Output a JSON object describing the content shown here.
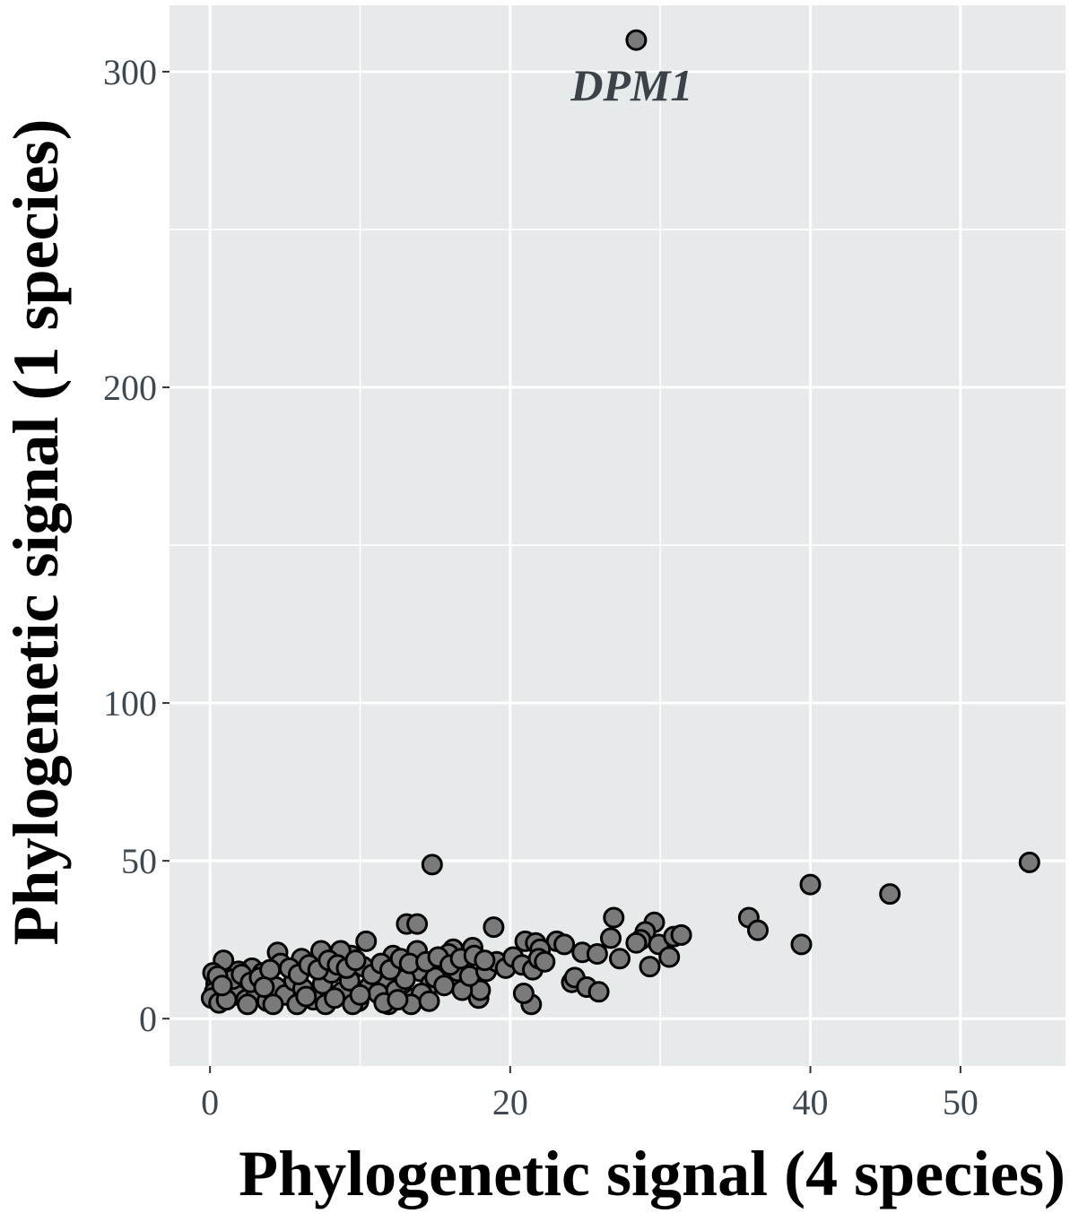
{
  "chart_data": {
    "type": "scatter",
    "xlabel": "Phylogenetic signal (4 species)",
    "ylabel": "Phylogenetic signal (1 species)",
    "xlim": [
      -2.7,
      57
    ],
    "ylim": [
      -15,
      321
    ],
    "x_major_ticks": [
      0,
      20,
      40,
      50
    ],
    "x_tick_labels": [
      "0",
      "20",
      "40",
      "50"
    ],
    "x_minor_gridlines": [
      10,
      30
    ],
    "y_major_ticks": [
      0,
      50,
      100,
      200,
      300
    ],
    "y_tick_labels": [
      "0",
      "50",
      "100",
      "200",
      "300"
    ],
    "y_minor_gridlines": [
      150,
      250
    ],
    "grid": true,
    "colors": {
      "panel": "#e6eaea",
      "grid": "#ffffff",
      "point_fill": "#7a7a7a",
      "point_stroke": "#000000"
    },
    "annotation": {
      "text": "DPM1",
      "x": 28.1,
      "y": 296
    },
    "points": [
      [
        28.4,
        310
      ],
      [
        54.6,
        49.5
      ],
      [
        14.8,
        48.8
      ],
      [
        40.0,
        42.5
      ],
      [
        45.3,
        39.5
      ],
      [
        35.9,
        32.0
      ],
      [
        36.5,
        28.0
      ],
      [
        39.4,
        23.5
      ],
      [
        26.9,
        32.0
      ],
      [
        26.7,
        25.5
      ],
      [
        27.3,
        19.0
      ],
      [
        29.3,
        16.5
      ],
      [
        29.6,
        30.5
      ],
      [
        29.0,
        27.5
      ],
      [
        29.9,
        23.5
      ],
      [
        30.9,
        26.0
      ],
      [
        31.4,
        26.5
      ],
      [
        30.6,
        19.5
      ],
      [
        28.7,
        25.0
      ],
      [
        28.4,
        24.0
      ],
      [
        18.9,
        29.0
      ],
      [
        13.1,
        30.0
      ],
      [
        13.8,
        30.0
      ],
      [
        10.4,
        24.5
      ],
      [
        21.0,
        24.5
      ],
      [
        21.7,
        24.0
      ],
      [
        23.1,
        24.5
      ],
      [
        23.6,
        23.5
      ],
      [
        22.0,
        22.0
      ],
      [
        24.8,
        21.0
      ],
      [
        25.8,
        20.5
      ],
      [
        24.1,
        11.5
      ],
      [
        24.3,
        13.0
      ],
      [
        25.1,
        10.0
      ],
      [
        25.9,
        8.5
      ],
      [
        21.4,
        4.5
      ],
      [
        20.9,
        8.0
      ],
      [
        17.9,
        6.5
      ],
      [
        18.0,
        9.0
      ],
      [
        16.2,
        22.0
      ],
      [
        17.5,
        22.5
      ],
      [
        15.9,
        20.5
      ],
      [
        15.3,
        17.5
      ],
      [
        16.5,
        15.0
      ],
      [
        13.8,
        21.5
      ],
      [
        12.9,
        17.0
      ],
      [
        12.2,
        20.0
      ],
      [
        11.7,
        13.0
      ],
      [
        14.0,
        15.0
      ],
      [
        14.7,
        11.0
      ],
      [
        10.2,
        16.5
      ],
      [
        9.4,
        20.0
      ],
      [
        8.7,
        21.5
      ],
      [
        7.4,
        21.5
      ],
      [
        6.1,
        19.0
      ],
      [
        4.5,
        21.0
      ],
      [
        4.7,
        17.5
      ],
      [
        2.8,
        16.0
      ],
      [
        3.5,
        14.5
      ],
      [
        1.9,
        15.0
      ],
      [
        0.9,
        18.5
      ],
      [
        0.2,
        14.5
      ],
      [
        0.4,
        11.0
      ],
      [
        0.3,
        8.5
      ],
      [
        0.1,
        6.5
      ],
      [
        0.6,
        5.0
      ],
      [
        1.2,
        9.0
      ],
      [
        1.8,
        7.5
      ],
      [
        2.4,
        6.0
      ],
      [
        3.1,
        8.0
      ],
      [
        3.8,
        5.5
      ],
      [
        4.4,
        10.0
      ],
      [
        5.0,
        7.5
      ],
      [
        5.6,
        12.0
      ],
      [
        6.2,
        9.5
      ],
      [
        6.9,
        6.0
      ],
      [
        7.5,
        11.0
      ],
      [
        8.1,
        14.5
      ],
      [
        8.8,
        8.5
      ],
      [
        9.3,
        12.0
      ],
      [
        9.9,
        5.5
      ],
      [
        10.6,
        10.0
      ],
      [
        11.2,
        8.0
      ],
      [
        11.9,
        4.5
      ],
      [
        12.4,
        9.0
      ],
      [
        13.0,
        12.5
      ],
      [
        13.6,
        6.5
      ],
      [
        14.1,
        8.0
      ],
      [
        15.0,
        13.0
      ],
      [
        15.6,
        10.5
      ],
      [
        16.8,
        9.0
      ],
      [
        17.3,
        13.5
      ],
      [
        18.4,
        15.0
      ],
      [
        19.1,
        18.0
      ],
      [
        19.7,
        16.0
      ],
      [
        20.2,
        19.5
      ],
      [
        20.8,
        17.0
      ],
      [
        21.5,
        15.5
      ],
      [
        21.9,
        19.0
      ],
      [
        22.3,
        18.0
      ],
      [
        1.5,
        12.5
      ],
      [
        2.1,
        14.0
      ],
      [
        2.7,
        11.5
      ],
      [
        3.3,
        13.0
      ],
      [
        4.0,
        15.5
      ],
      [
        5.3,
        16.0
      ],
      [
        5.9,
        14.0
      ],
      [
        6.6,
        17.0
      ],
      [
        7.2,
        15.5
      ],
      [
        7.9,
        18.5
      ],
      [
        8.5,
        17.0
      ],
      [
        9.1,
        16.0
      ],
      [
        9.7,
        18.5
      ],
      [
        10.8,
        14.0
      ],
      [
        11.4,
        17.5
      ],
      [
        12.0,
        15.5
      ],
      [
        12.7,
        19.0
      ],
      [
        13.3,
        17.5
      ],
      [
        14.4,
        18.0
      ],
      [
        15.2,
        19.5
      ],
      [
        16.0,
        17.0
      ],
      [
        16.7,
        19.0
      ],
      [
        17.6,
        20.0
      ],
      [
        18.3,
        18.5
      ],
      [
        0.5,
        13.5
      ],
      [
        1.1,
        6.0
      ],
      [
        2.5,
        4.5
      ],
      [
        4.2,
        4.5
      ],
      [
        5.8,
        4.5
      ],
      [
        7.7,
        4.5
      ],
      [
        9.5,
        4.5
      ],
      [
        11.6,
        5.0
      ],
      [
        13.4,
        4.5
      ],
      [
        0.8,
        10.5
      ],
      [
        3.6,
        10.0
      ],
      [
        6.4,
        7.0
      ],
      [
        8.3,
        6.5
      ],
      [
        10.0,
        7.5
      ],
      [
        12.5,
        6.0
      ],
      [
        14.6,
        5.5
      ]
    ]
  }
}
